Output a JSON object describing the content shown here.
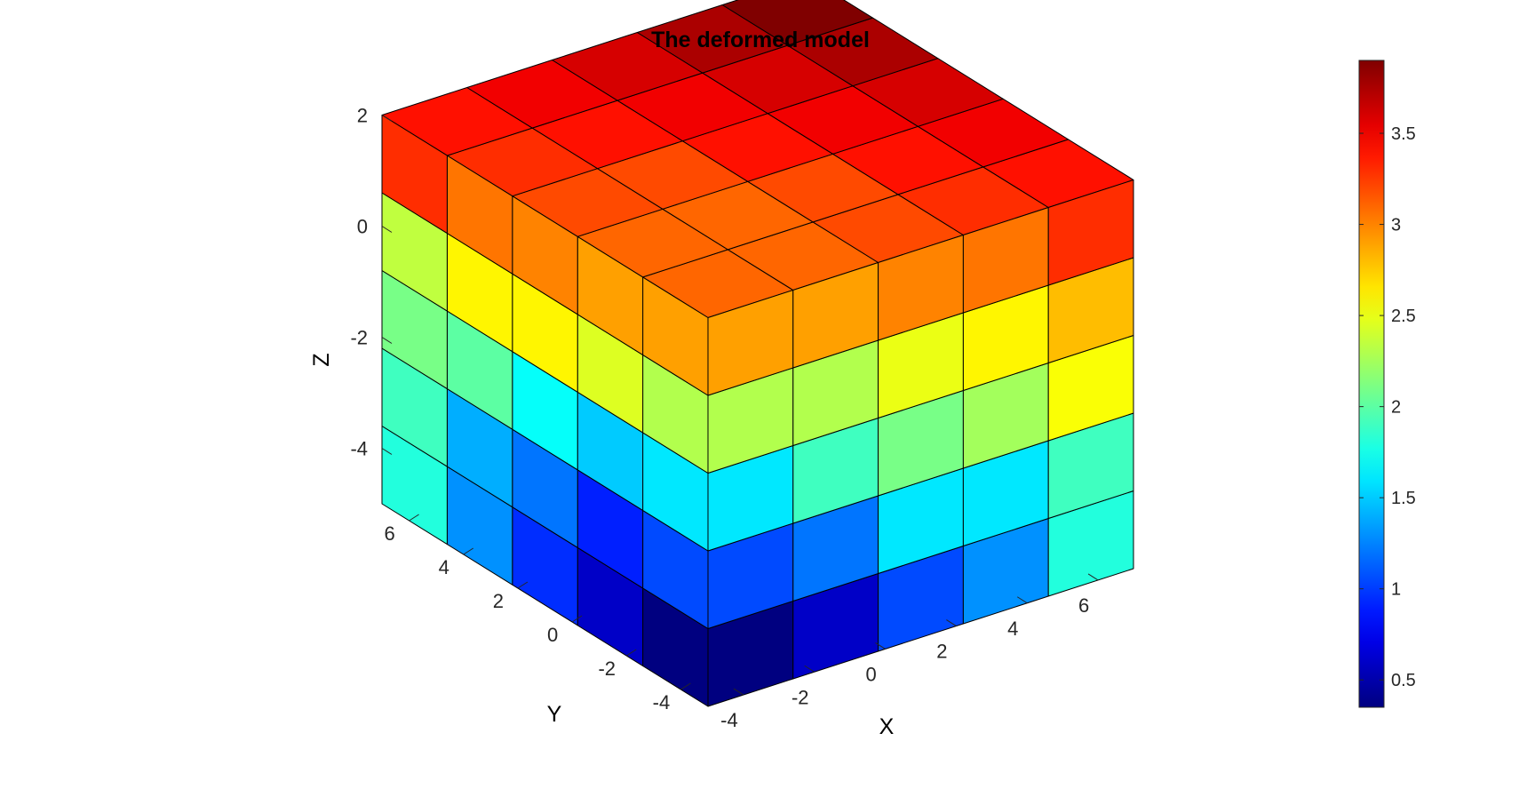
{
  "chart_data": {
    "type": "3d-voxel",
    "title": "The deformed model",
    "xlabel": "X",
    "ylabel": "Y",
    "zlabel": "Z",
    "x_ticks": [
      -4,
      -2,
      0,
      2,
      4,
      6
    ],
    "y_ticks": [
      -4,
      -2,
      0,
      2,
      4,
      6
    ],
    "z_ticks": [
      -4,
      -2,
      0,
      2
    ],
    "x_tick_labels": [
      "-4",
      "-2",
      "0",
      "2",
      "4",
      "6"
    ],
    "y_tick_labels": [
      "-4",
      "-2",
      "0",
      "2",
      "4",
      "6"
    ],
    "z_tick_labels": [
      "-4",
      "-2",
      "0",
      "2"
    ],
    "xlim": [
      -5,
      7
    ],
    "ylim": [
      -5,
      7
    ],
    "zlim": [
      -5,
      2
    ],
    "colormap": "jet",
    "colorbar": {
      "limits": [
        0.35,
        3.9
      ],
      "ticks": [
        0.5,
        1,
        1.5,
        2,
        2.5,
        3,
        3.5
      ],
      "tick_labels": [
        "0.5",
        "1",
        "1.5",
        "2",
        "2.5",
        "3",
        "3.5"
      ]
    },
    "grid": {
      "nx": 5,
      "ny": 5,
      "nz": 5,
      "x_edges": [
        -5,
        -2.6,
        -0.2,
        2.2,
        4.6,
        7
      ],
      "y_edges": [
        -5,
        -2.6,
        -0.2,
        2.2,
        4.6,
        7
      ],
      "z_edges": [
        -5,
        -3.6,
        -2.2,
        -0.8,
        0.6,
        2
      ]
    },
    "top_face_values": [
      [
        3.1,
        3.1,
        3.2,
        3.3,
        3.4
      ],
      [
        3.1,
        3.1,
        3.2,
        3.4,
        3.5
      ],
      [
        3.2,
        3.2,
        3.4,
        3.5,
        3.6
      ],
      [
        3.3,
        3.4,
        3.5,
        3.6,
        3.75
      ],
      [
        3.4,
        3.5,
        3.6,
        3.75,
        3.9
      ]
    ],
    "front_face_values": [
      [
        0.35,
        0.6,
        1.05,
        1.3,
        1.8
      ],
      [
        1.05,
        1.2,
        1.6,
        1.6,
        1.9
      ],
      [
        1.6,
        1.9,
        2.1,
        2.25,
        2.55
      ],
      [
        2.3,
        2.3,
        2.5,
        2.6,
        2.8
      ],
      [
        2.9,
        2.9,
        3.0,
        3.05,
        3.3
      ]
    ],
    "left_face_values": [
      [
        0.35,
        0.6,
        0.95,
        1.3,
        1.8
      ],
      [
        1.05,
        0.9,
        1.2,
        1.4,
        1.9
      ],
      [
        1.6,
        1.5,
        1.7,
        2.0,
        2.1
      ],
      [
        2.3,
        2.45,
        2.6,
        2.6,
        2.35
      ],
      [
        2.9,
        2.9,
        3.0,
        3.05,
        3.3
      ]
    ]
  }
}
